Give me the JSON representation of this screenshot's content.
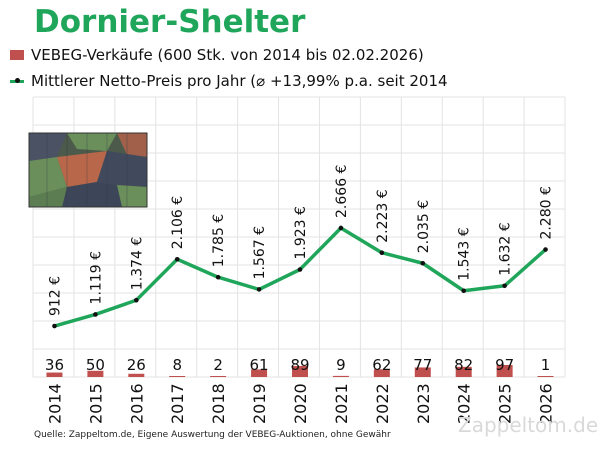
{
  "header": {
    "title": "Dornier-Shelter",
    "legend": [
      {
        "label": "VEBEG-Verkäufe (600 Stk. von 2014 bis 02.02.2026)",
        "type": "bar",
        "color": "#c0504d"
      },
      {
        "label": "Mittlerer Netto-Preis pro Jahr (⌀ +13,99% p.a. seit 2014",
        "type": "line",
        "color": "#1fa65a"
      }
    ]
  },
  "footer": {
    "source": "Quelle: Zappeltom.de, Eigene Auswertung der VEBEG-Auktionen, ohne Gewähr",
    "watermark": "Zappeltom.de"
  },
  "image": {
    "description": "camouflage-shelter-container"
  },
  "chart_data": {
    "type": "bar",
    "title": "Dornier-Shelter",
    "xlabel": "",
    "ylabel": "",
    "grid": true,
    "legend_position": "top-left",
    "categories": [
      "2014",
      "2015",
      "2016",
      "2017",
      "2018",
      "2019",
      "2020",
      "2021",
      "2022",
      "2023",
      "2024",
      "2025",
      "2026"
    ],
    "series": [
      {
        "name": "VEBEG-Verkäufe (600 Stk. von 2014 bis 02.02.2026)",
        "type": "bar",
        "color": "#c0504d",
        "values": [
          36,
          50,
          26,
          8,
          2,
          61,
          89,
          9,
          62,
          77,
          82,
          97,
          1
        ],
        "labels": [
          "36",
          "50",
          "26",
          "8",
          "2",
          "61",
          "89",
          "9",
          "62",
          "77",
          "82",
          "97",
          "1"
        ]
      },
      {
        "name": "Mittlerer Netto-Preis pro Jahr (⌀ +13,99% p.a. seit 2014",
        "type": "line",
        "color": "#1fa65a",
        "unit": "€",
        "values": [
          912,
          1119,
          1374,
          2106,
          1785,
          1567,
          1923,
          2666,
          2223,
          2035,
          1543,
          1632,
          2280
        ],
        "labels": [
          "912 €",
          "1.119 €",
          "1.374 €",
          "2.106 €",
          "1.785 €",
          "1.567 €",
          "1.923 €",
          "2.666 €",
          "2.223 €",
          "2.035 €",
          "1.543 €",
          "1.632 €",
          "2.280 €"
        ]
      }
    ],
    "annotations": [
      "⌀ +13,99% p.a. seit 2014",
      "600 Stk. von 2014 bis 02.02.2026"
    ]
  }
}
